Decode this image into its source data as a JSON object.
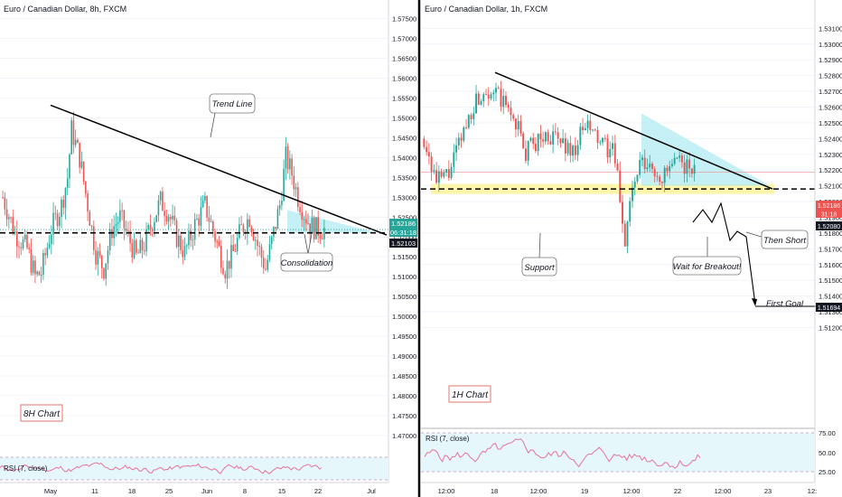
{
  "colors": {
    "up": "#26a69a",
    "down": "#ef5350",
    "zone_fill": "#b2ebf2",
    "support_fill": "#fff59d",
    "rsi_line": "#e57399",
    "rsi_fill": "#e6f7fb",
    "trend_line": "#000000",
    "last_price_tag": "#26a69a",
    "level_tag": "#131722",
    "annotation_border": "#e57373"
  },
  "left_panel": {
    "title": "Euro / Canadian Dollar, 8h, FXCM",
    "timeframe_label": "8H Chart",
    "rsi_label": "RSI (7, close)",
    "annotations": {
      "trend_line": "Trend Line",
      "consolidation": "Consolidation"
    },
    "price_tags": {
      "last": "1.52186",
      "countdown": "06:31:18",
      "level": "1.52103"
    },
    "x_ticks": [
      "May",
      "11",
      "18",
      "25",
      "Jun",
      "8",
      "15",
      "22",
      "Jul"
    ]
  },
  "right_panel": {
    "title": "Euro / Canadian Dollar, 1h, FXCM",
    "timeframe_label": "1H Chart",
    "rsi_label": "RSI (7, close)",
    "annotations": {
      "support": "Support",
      "wait": "Wait for Breakout!",
      "then_short": "Then Short",
      "first_goal": "First Goal"
    },
    "price_tags": {
      "last": "1.52186",
      "countdown": "31:18",
      "level": "1.52080",
      "goal": "1.51694"
    },
    "x_ticks": [
      "12:00",
      "18",
      "12:00",
      "19",
      "12:00",
      "22",
      "12:00",
      "23",
      "12:"
    ],
    "rsi_ticks": [
      "75.00",
      "50.00",
      "25.00"
    ]
  },
  "chart_data": [
    {
      "type": "candlestick",
      "title": "Euro / Canadian Dollar, 8h, FXCM",
      "symbol": "EURCAD",
      "timeframe": "8h",
      "ylim": [
        1.4645,
        1.5797
      ],
      "y_ticks": [
        "1.57500",
        "1.57000",
        "1.56500",
        "1.56000",
        "1.55500",
        "1.55000",
        "1.54500",
        "1.54000",
        "1.53500",
        "1.53000",
        "1.52500",
        "1.52000",
        "1.51500",
        "1.51000",
        "1.50500",
        "1.50000",
        "1.49500",
        "1.49000",
        "1.48500",
        "1.48000",
        "1.47500",
        "1.47000"
      ],
      "x_ticks": [
        "May",
        "11",
        "18",
        "25",
        "Jun",
        "8",
        "15",
        "22",
        "Jul"
      ],
      "waypoints": [
        [
          0,
          1.53
        ],
        [
          6,
          1.521
        ],
        [
          12,
          1.517
        ],
        [
          16,
          1.51
        ],
        [
          19,
          1.511
        ],
        [
          24,
          1.522
        ],
        [
          29,
          1.528
        ],
        [
          32,
          1.535
        ],
        [
          34,
          1.547
        ],
        [
          38,
          1.54
        ],
        [
          42,
          1.528
        ],
        [
          46,
          1.516
        ],
        [
          50,
          1.512
        ],
        [
          54,
          1.522
        ],
        [
          58,
          1.525
        ],
        [
          62,
          1.52
        ],
        [
          66,
          1.515
        ],
        [
          70,
          1.518
        ],
        [
          74,
          1.524
        ],
        [
          78,
          1.529
        ],
        [
          82,
          1.526
        ],
        [
          86,
          1.52
        ],
        [
          90,
          1.516
        ],
        [
          95,
          1.523
        ],
        [
          100,
          1.528
        ],
        [
          105,
          1.52
        ],
        [
          110,
          1.512
        ],
        [
          114,
          1.516
        ],
        [
          118,
          1.522
        ],
        [
          122,
          1.525
        ],
        [
          126,
          1.518
        ],
        [
          130,
          1.512
        ],
        [
          134,
          1.521
        ],
        [
          137,
          1.528
        ],
        [
          140,
          1.54
        ],
        [
          143,
          1.536
        ],
        [
          146,
          1.53
        ],
        [
          149,
          1.526
        ],
        [
          152,
          1.523
        ],
        [
          155,
          1.522
        ],
        [
          158,
          1.5219
        ]
      ],
      "trend_line": [
        [
          1.5532,
          "start"
        ],
        [
          1.5205,
          "end"
        ]
      ],
      "horizontal_level": 1.52103,
      "last_price": 1.52186,
      "rsi": {
        "label": "RSI (7, close)",
        "range": [
          0,
          100
        ]
      }
    },
    {
      "type": "candlestick",
      "title": "Euro / Canadian Dollar, 1h, FXCM",
      "symbol": "EURCAD",
      "timeframe": "1h",
      "ylim": [
        1.5056,
        1.5328
      ],
      "y_ticks": [
        "1.53100",
        "1.53000",
        "1.52900",
        "1.52800",
        "1.52700",
        "1.52600",
        "1.52500",
        "1.52400",
        "1.52300",
        "1.52200",
        "1.52100",
        "1.52000",
        "1.51900",
        "1.51800",
        "1.51700",
        "1.51600",
        "1.51500",
        "1.51400",
        "1.51300",
        "1.51200"
      ],
      "x_ticks": [
        "12:00",
        "18",
        "12:00",
        "19",
        "12:00",
        "22",
        "12:00",
        "23",
        "12:"
      ],
      "waypoints": [
        [
          0,
          1.524
        ],
        [
          5,
          1.5212
        ],
        [
          10,
          1.5218
        ],
        [
          15,
          1.524
        ],
        [
          20,
          1.5262
        ],
        [
          25,
          1.5272
        ],
        [
          28,
          1.527
        ],
        [
          33,
          1.526
        ],
        [
          38,
          1.5248
        ],
        [
          40,
          1.523
        ],
        [
          45,
          1.5238
        ],
        [
          50,
          1.5242
        ],
        [
          55,
          1.5238
        ],
        [
          60,
          1.5232
        ],
        [
          65,
          1.5248
        ],
        [
          70,
          1.524
        ],
        [
          72,
          1.5235
        ],
        [
          76,
          1.5232
        ],
        [
          78,
          1.5215
        ],
        [
          81,
          1.5175
        ],
        [
          83,
          1.52
        ],
        [
          87,
          1.5223
        ],
        [
          92,
          1.522
        ],
        [
          96,
          1.5215
        ],
        [
          100,
          1.5222
        ],
        [
          104,
          1.5225
        ],
        [
          108,
          1.5219
        ]
      ],
      "trend_line": [
        [
          1.5282,
          "start"
        ],
        [
          1.5208,
          "end"
        ]
      ],
      "support_zone": [
        1.52065,
        1.52095
      ],
      "horizontal_level": 1.5208,
      "last_price": 1.52186,
      "first_goal": 1.51694,
      "rsi": {
        "label": "RSI (7, close)",
        "ticks": [
          75,
          50,
          25
        ],
        "range": [
          12,
          88
        ]
      }
    }
  ]
}
